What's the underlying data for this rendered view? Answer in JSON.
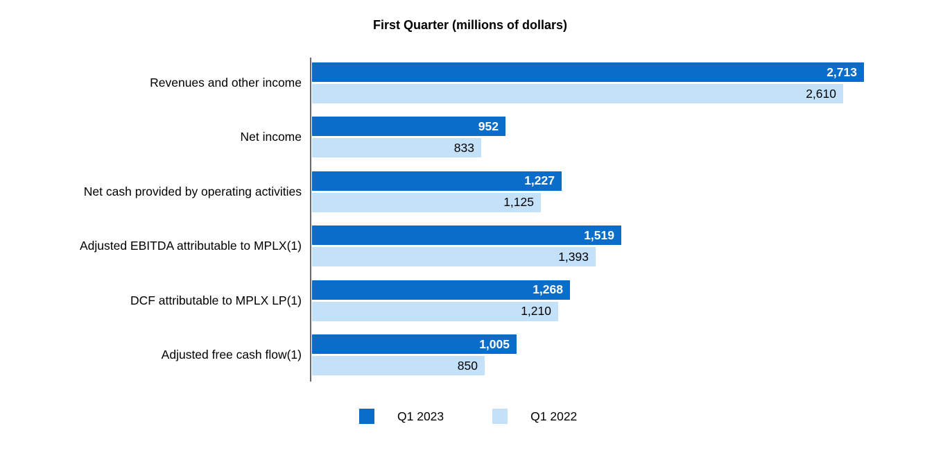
{
  "chart_data": {
    "type": "bar",
    "orientation": "horizontal",
    "title": "First Quarter (millions of dollars)",
    "categories": [
      "Revenues and other income",
      "Net income",
      "Net cash provided by operating activities",
      "Adjusted EBITDA attributable to MPLX(1)",
      "DCF attributable to MPLX LP(1)",
      "Adjusted free cash flow(1)"
    ],
    "series": [
      {
        "name": "Q1 2023",
        "color": "#0a6dc9",
        "values": [
          2713,
          952,
          1227,
          1519,
          1268,
          1005
        ],
        "value_labels": [
          "2,713",
          "952",
          "1,227",
          "1,519",
          "1,268",
          "1,005"
        ],
        "value_label_color": "#ffffff",
        "value_label_bold": true
      },
      {
        "name": "Q1 2022",
        "color": "#c3e1f9",
        "values": [
          2610,
          833,
          1125,
          1393,
          1210,
          850
        ],
        "value_labels": [
          "2,610",
          "833",
          "1,125",
          "1,393",
          "1,210",
          "850"
        ],
        "value_label_color": "#000000",
        "value_label_bold": false
      }
    ],
    "xlim": [
      0,
      3100
    ],
    "value_axis_visible": false,
    "grid": false,
    "baseline_color": "#6b6b6b",
    "legend": {
      "position": "bottom",
      "entries": [
        "Q1 2023",
        "Q1 2022"
      ]
    }
  }
}
